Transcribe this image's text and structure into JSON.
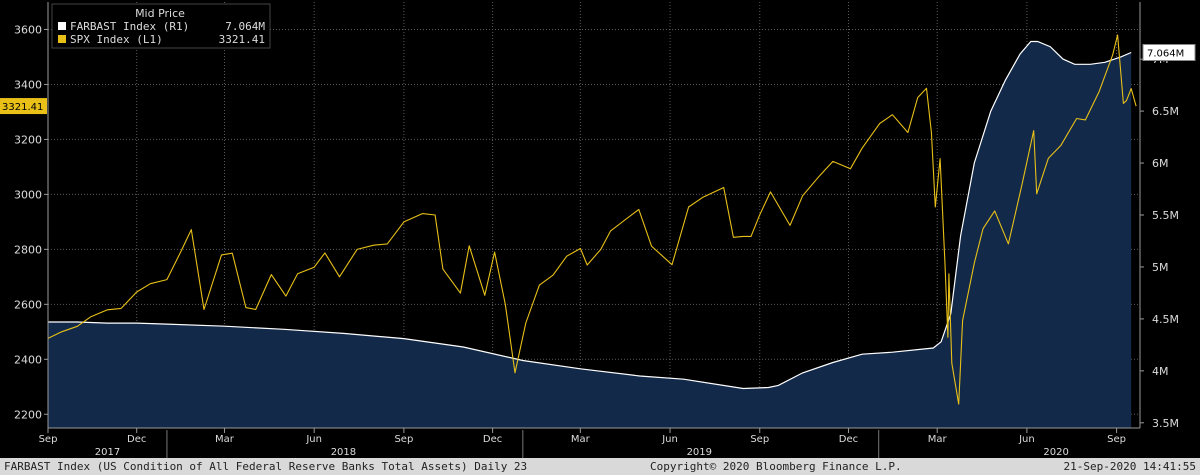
{
  "chart_data": {
    "type": "line",
    "legend": {
      "title": "Mid Price",
      "entries": [
        {
          "label": "FARBAST Index  (R1)",
          "value": "7.064M",
          "color": "#ffffff"
        },
        {
          "label": "SPX Index  (L1)",
          "value": "3321.41",
          "color": "#e8c018"
        }
      ]
    },
    "left_axis": {
      "range": [
        2150,
        3700
      ],
      "ticks": [
        2200,
        2400,
        2600,
        2800,
        3000,
        3200,
        3400,
        3600
      ],
      "tick_labels": [
        "2200",
        "2400",
        "2600",
        "2800",
        "3000",
        "3200",
        "3400",
        "3600"
      ]
    },
    "right_axis": {
      "range": [
        3.45,
        7.55
      ],
      "ticks": [
        3.5,
        4,
        4.5,
        5,
        5.5,
        6,
        6.5,
        7
      ],
      "tick_labels": [
        "3.5M",
        "4M",
        "4.5M",
        "5M",
        "5.5M",
        "6M",
        "6.5M",
        "7M"
      ]
    },
    "x_axis": {
      "range": [
        "2017-09-01",
        "2020-09-25"
      ],
      "month_ticks": [
        {
          "date": "2017-09-01",
          "label": "Sep"
        },
        {
          "date": "2017-12-01",
          "label": "Dec"
        },
        {
          "date": "2018-03-01",
          "label": "Mar"
        },
        {
          "date": "2018-06-01",
          "label": "Jun"
        },
        {
          "date": "2018-09-01",
          "label": "Sep"
        },
        {
          "date": "2018-12-01",
          "label": "Dec"
        },
        {
          "date": "2019-03-01",
          "label": "Mar"
        },
        {
          "date": "2019-06-01",
          "label": "Jun"
        },
        {
          "date": "2019-09-01",
          "label": "Sep"
        },
        {
          "date": "2019-12-01",
          "label": "Dec"
        },
        {
          "date": "2020-03-01",
          "label": "Mar"
        },
        {
          "date": "2020-06-01",
          "label": "Jun"
        },
        {
          "date": "2020-09-01",
          "label": "Sep"
        }
      ],
      "year_labels": [
        {
          "date": "2017-11-01",
          "label": "2017"
        },
        {
          "date": "2018-07-01",
          "label": "2018"
        },
        {
          "date": "2019-07-01",
          "label": "2019"
        },
        {
          "date": "2020-07-01",
          "label": "2020"
        }
      ]
    },
    "last_value_tags": [
      {
        "axis": "left",
        "value": 3321.41,
        "label": "3321.41"
      },
      {
        "axis": "right",
        "value": 7.064,
        "label": "7.064M"
      }
    ],
    "series": [
      {
        "name": "FARBAST Index",
        "axis": "right",
        "style": "area",
        "units": "millions USD",
        "points": [
          [
            "2017-09-01",
            4.47
          ],
          [
            "2017-10-01",
            4.47
          ],
          [
            "2017-11-01",
            4.46
          ],
          [
            "2017-12-01",
            4.46
          ],
          [
            "2018-01-01",
            4.45
          ],
          [
            "2018-03-01",
            4.43
          ],
          [
            "2018-05-01",
            4.4
          ],
          [
            "2018-07-01",
            4.36
          ],
          [
            "2018-09-01",
            4.31
          ],
          [
            "2018-11-01",
            4.23
          ],
          [
            "2019-01-01",
            4.1
          ],
          [
            "2019-03-01",
            4.02
          ],
          [
            "2019-05-01",
            3.95
          ],
          [
            "2019-06-15",
            3.92
          ],
          [
            "2019-08-15",
            3.83
          ],
          [
            "2019-09-10",
            3.84
          ],
          [
            "2019-09-20",
            3.86
          ],
          [
            "2019-10-15",
            3.98
          ],
          [
            "2019-11-15",
            4.08
          ],
          [
            "2019-12-15",
            4.16
          ],
          [
            "2020-01-15",
            4.18
          ],
          [
            "2020-02-26",
            4.22
          ],
          [
            "2020-03-05",
            4.28
          ],
          [
            "2020-03-15",
            4.55
          ],
          [
            "2020-03-25",
            5.3
          ],
          [
            "2020-04-08",
            6.0
          ],
          [
            "2020-04-25",
            6.5
          ],
          [
            "2020-05-10",
            6.8
          ],
          [
            "2020-05-25",
            7.05
          ],
          [
            "2020-06-05",
            7.17
          ],
          [
            "2020-06-12",
            7.17
          ],
          [
            "2020-06-25",
            7.12
          ],
          [
            "2020-07-08",
            7.0
          ],
          [
            "2020-07-20",
            6.95
          ],
          [
            "2020-08-05",
            6.95
          ],
          [
            "2020-08-20",
            6.97
          ],
          [
            "2020-09-05",
            7.02
          ],
          [
            "2020-09-16",
            7.064
          ]
        ]
      },
      {
        "name": "SPX Index",
        "axis": "left",
        "style": "line",
        "points": [
          [
            "2017-09-01",
            2476
          ],
          [
            "2017-09-15",
            2500
          ],
          [
            "2017-10-01",
            2520
          ],
          [
            "2017-10-15",
            2555
          ],
          [
            "2017-11-01",
            2580
          ],
          [
            "2017-11-15",
            2585
          ],
          [
            "2017-12-01",
            2645
          ],
          [
            "2017-12-15",
            2675
          ],
          [
            "2018-01-01",
            2690
          ],
          [
            "2018-01-15",
            2790
          ],
          [
            "2018-01-26",
            2872
          ],
          [
            "2018-02-08",
            2581
          ],
          [
            "2018-02-26",
            2780
          ],
          [
            "2018-03-09",
            2786
          ],
          [
            "2018-03-23",
            2588
          ],
          [
            "2018-04-02",
            2581
          ],
          [
            "2018-04-18",
            2708
          ],
          [
            "2018-05-03",
            2630
          ],
          [
            "2018-05-15",
            2711
          ],
          [
            "2018-06-01",
            2735
          ],
          [
            "2018-06-12",
            2787
          ],
          [
            "2018-06-27",
            2700
          ],
          [
            "2018-07-15",
            2800
          ],
          [
            "2018-08-01",
            2815
          ],
          [
            "2018-08-15",
            2820
          ],
          [
            "2018-09-01",
            2900
          ],
          [
            "2018-09-20",
            2930
          ],
          [
            "2018-10-03",
            2925
          ],
          [
            "2018-10-11",
            2728
          ],
          [
            "2018-10-29",
            2641
          ],
          [
            "2018-11-07",
            2813
          ],
          [
            "2018-11-23",
            2633
          ],
          [
            "2018-12-03",
            2790
          ],
          [
            "2018-12-14",
            2600
          ],
          [
            "2018-12-24",
            2351
          ],
          [
            "2019-01-04",
            2532
          ],
          [
            "2019-01-18",
            2670
          ],
          [
            "2019-02-01",
            2706
          ],
          [
            "2019-02-15",
            2775
          ],
          [
            "2019-03-01",
            2803
          ],
          [
            "2019-03-08",
            2743
          ],
          [
            "2019-03-22",
            2800
          ],
          [
            "2019-04-01",
            2867
          ],
          [
            "2019-04-15",
            2905
          ],
          [
            "2019-04-30",
            2945
          ],
          [
            "2019-05-13",
            2812
          ],
          [
            "2019-06-03",
            2744
          ],
          [
            "2019-06-20",
            2954
          ],
          [
            "2019-07-05",
            2990
          ],
          [
            "2019-07-26",
            3025
          ],
          [
            "2019-08-05",
            2844
          ],
          [
            "2019-08-15",
            2847
          ],
          [
            "2019-08-23",
            2847
          ],
          [
            "2019-09-01",
            2926
          ],
          [
            "2019-09-12",
            3009
          ],
          [
            "2019-10-02",
            2887
          ],
          [
            "2019-10-15",
            2995
          ],
          [
            "2019-11-01",
            3066
          ],
          [
            "2019-11-15",
            3120
          ],
          [
            "2019-12-03",
            3093
          ],
          [
            "2019-12-15",
            3168
          ],
          [
            "2020-01-02",
            3258
          ],
          [
            "2020-01-15",
            3290
          ],
          [
            "2020-01-31",
            3225
          ],
          [
            "2020-02-10",
            3352
          ],
          [
            "2020-02-19",
            3386
          ],
          [
            "2020-02-24",
            3225
          ],
          [
            "2020-02-28",
            2954
          ],
          [
            "2020-03-04",
            3130
          ],
          [
            "2020-03-09",
            2746
          ],
          [
            "2020-03-12",
            2480
          ],
          [
            "2020-03-13",
            2711
          ],
          [
            "2020-03-16",
            2386
          ],
          [
            "2020-03-23",
            2237
          ],
          [
            "2020-03-27",
            2541
          ],
          [
            "2020-04-08",
            2750
          ],
          [
            "2020-04-17",
            2875
          ],
          [
            "2020-04-29",
            2940
          ],
          [
            "2020-05-13",
            2820
          ],
          [
            "2020-05-27",
            3036
          ],
          [
            "2020-06-08",
            3232
          ],
          [
            "2020-06-11",
            3002
          ],
          [
            "2020-06-23",
            3131
          ],
          [
            "2020-07-06",
            3179
          ],
          [
            "2020-07-22",
            3276
          ],
          [
            "2020-07-31",
            3271
          ],
          [
            "2020-08-14",
            3373
          ],
          [
            "2020-08-28",
            3508
          ],
          [
            "2020-09-02",
            3580
          ],
          [
            "2020-09-08",
            3331
          ],
          [
            "2020-09-11",
            3341
          ],
          [
            "2020-09-16",
            3385
          ],
          [
            "2020-09-21",
            3321.41
          ]
        ]
      }
    ]
  },
  "footer": {
    "left": "FARBAST Index (US Condition of All Federal Reserve Banks Total Assets)  Daily 23",
    "center": "Copyright© 2020 Bloomberg Finance L.P.",
    "right": "21-Sep-2020  14:41:55"
  },
  "colors": {
    "background": "#000000",
    "area_fill": "#12294a",
    "area_line": "#ffffff",
    "spx_line": "#e8c018",
    "grid": "#5a5a5a",
    "axis_text": "#dcdcdc"
  }
}
